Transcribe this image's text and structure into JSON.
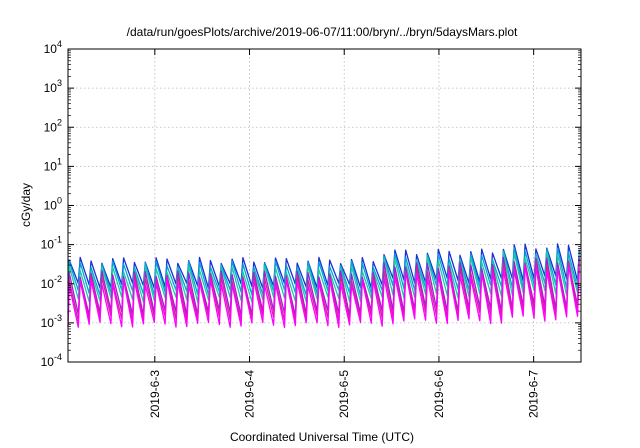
{
  "chart_data": {
    "type": "line",
    "title": "/data/run/goesPlots/archive/2019-06-07/11:00/bryn/../bryn/5daysMars.plot",
    "xlabel": "Coordinated Universal Time (UTC)",
    "ylabel": "cGy/day",
    "y_scale": "log",
    "ylim": [
      0.0001,
      10000
    ],
    "xlim": [
      "2019-06-02 02:00",
      "2019-06-07 12:00"
    ],
    "grid": true,
    "legend": "none",
    "x_ticks": [
      {
        "x": "2019-06-03 00:00",
        "label": "2019-6-3"
      },
      {
        "x": "2019-06-04 00:00",
        "label": "2019-6-4"
      },
      {
        "x": "2019-06-05 00:00",
        "label": "2019-6-5"
      },
      {
        "x": "2019-06-06 00:00",
        "label": "2019-6-6"
      },
      {
        "x": "2019-06-07 00:00",
        "label": "2019-6-7"
      }
    ],
    "y_ticks": [
      {
        "y": 0.0001,
        "base": "10",
        "exp": "-4"
      },
      {
        "y": 0.001,
        "base": "10",
        "exp": "-3"
      },
      {
        "y": 0.01,
        "base": "10",
        "exp": "-2"
      },
      {
        "y": 0.1,
        "base": "10",
        "exp": "-1"
      },
      {
        "y": 1,
        "base": "10",
        "exp": "0"
      },
      {
        "y": 10,
        "base": "10",
        "exp": "1"
      },
      {
        "y": 100,
        "base": "10",
        "exp": "2"
      },
      {
        "y": 1000,
        "base": "10",
        "exp": "3"
      },
      {
        "y": 10000,
        "base": "10",
        "exp": "4"
      }
    ],
    "pattern": {
      "period_hours": 2.75,
      "first_peak": "2019-06-02 02:00",
      "note": "sawtooth: sharp rise then decay within each orbit period"
    },
    "series": [
      {
        "color": "#1a2fd6",
        "peak": [
          0.04,
          0.065,
          0.09
        ],
        "trough": [
          0.009,
          0.012,
          0.014
        ]
      },
      {
        "color": "#00a6d6",
        "peak": [
          0.032,
          0.05,
          0.07
        ],
        "trough": [
          0.006,
          0.008,
          0.009
        ]
      },
      {
        "color": "#1fc9a8",
        "peak": [
          0.024,
          0.04,
          0.055
        ],
        "trough": [
          0.004,
          0.005,
          0.006
        ]
      },
      {
        "color": "#9c1fd6",
        "peak": [
          0.018,
          0.03,
          0.04
        ],
        "trough": [
          0.0018,
          0.0022,
          0.0026
        ]
      },
      {
        "color": "#d61f9c",
        "peak": [
          0.014,
          0.022,
          0.032
        ],
        "trough": [
          0.0013,
          0.0016,
          0.0019
        ]
      },
      {
        "color": "#ff00ff",
        "peak": [
          0.011,
          0.017,
          0.025
        ],
        "trough": [
          0.0009,
          0.0011,
          0.0013
        ]
      }
    ],
    "segments": [
      {
        "from": "2019-06-02 02:00",
        "to": "2019-06-05 08:00",
        "level": 0
      },
      {
        "from": "2019-06-05 08:00",
        "to": "2019-06-06 14:00",
        "level": 1
      },
      {
        "from": "2019-06-06 14:00",
        "to": "2019-06-07 12:00",
        "level": 2
      }
    ]
  }
}
